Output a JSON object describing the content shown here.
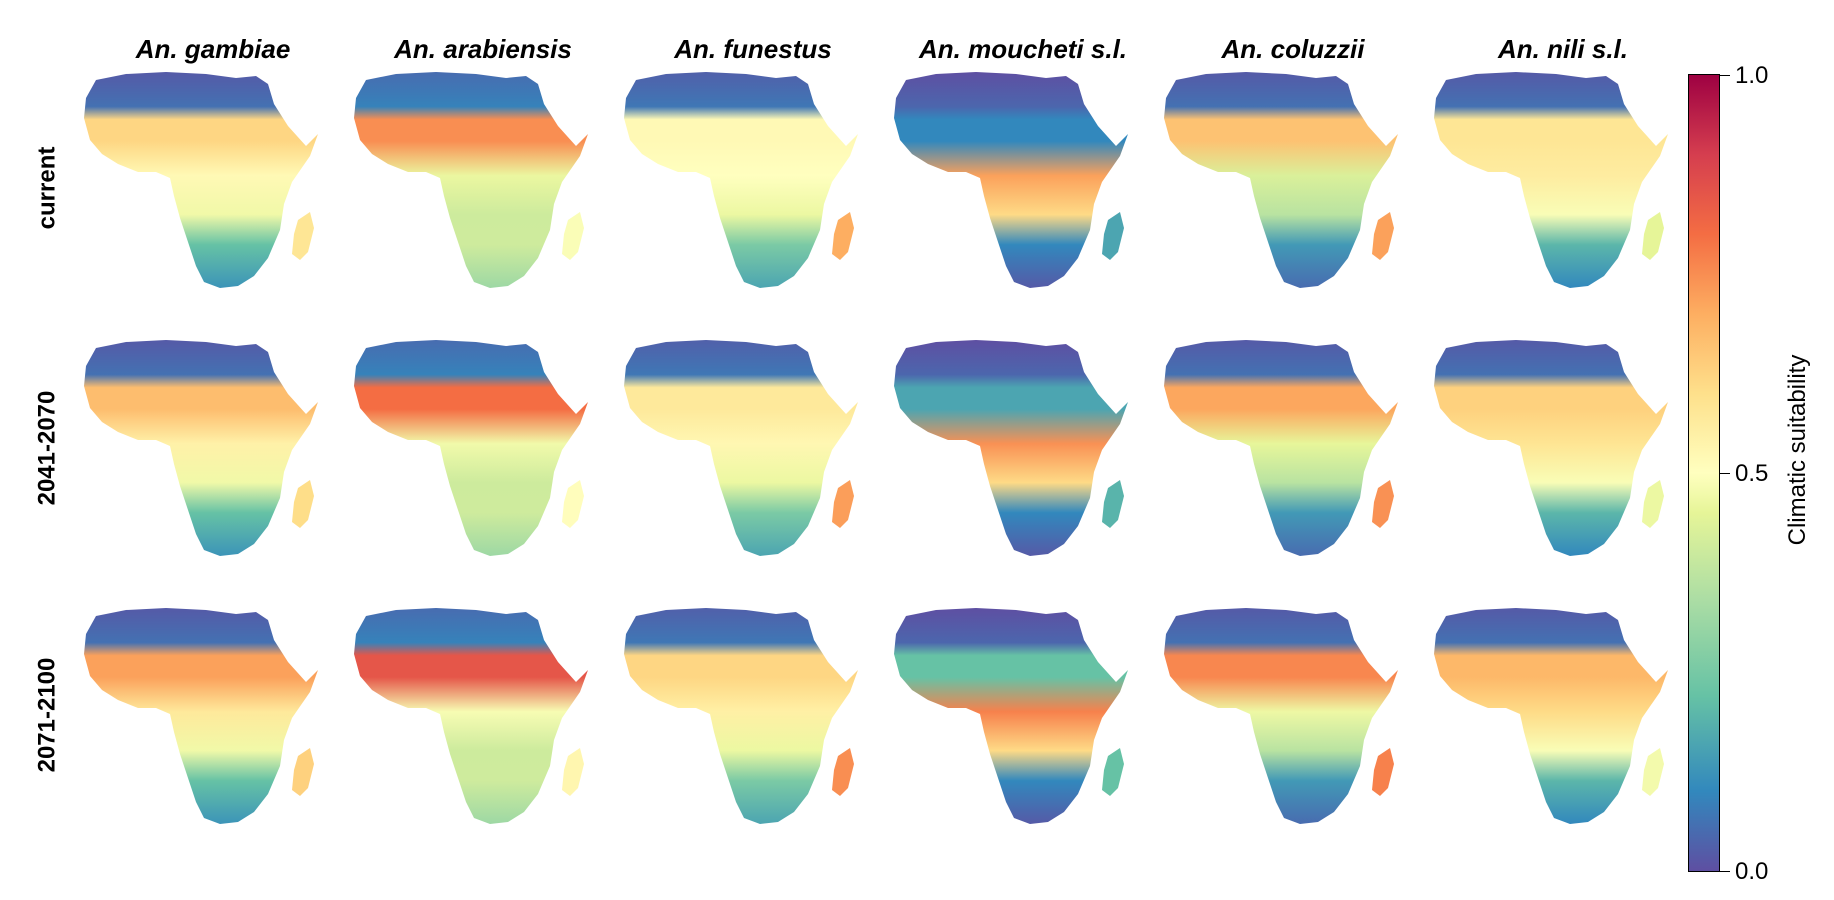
{
  "figure": {
    "columns": [
      "An. gambiae",
      "An. arabiensis",
      "An. funestus",
      "An. moucheti s.l.",
      "An. coluzzii",
      "An. nili s.l."
    ],
    "rows": [
      "current",
      "2041-2070",
      "2071-2100"
    ],
    "colorbar": {
      "label": "Climatic suitability",
      "ticks": [
        "0.0",
        "0.5",
        "1.0"
      ],
      "range": [
        0,
        1
      ],
      "colors": [
        "#5e4fa2",
        "#3288bd",
        "#66c2a5",
        "#abdda4",
        "#e6f598",
        "#ffffbf",
        "#fee08b",
        "#fdae61",
        "#f46d43",
        "#d53e4f",
        "#9e0142"
      ]
    },
    "suitability": {
      "An. gambiae": {
        "sahara": 0.02,
        "sahel": 0.62,
        "center": 0.52,
        "south": 0.12,
        "madagascar": 0.58
      },
      "An. arabiensis": {
        "sahara": 0.05,
        "sahel": 0.75,
        "center": 0.42,
        "south": 0.28,
        "madagascar": 0.48
      },
      "An. funestus": {
        "sahara": 0.03,
        "sahel": 0.52,
        "center": 0.5,
        "south": 0.15,
        "madagascar": 0.7
      },
      "An. moucheti s.l.": {
        "sahara": 0.0,
        "sahel": 0.1,
        "center": 0.72,
        "south": 0.02,
        "madagascar": 0.15
      },
      "An. coluzzii": {
        "sahara": 0.02,
        "sahel": 0.66,
        "center": 0.38,
        "south": 0.05,
        "madagascar": 0.72
      },
      "An. nili s.l.": {
        "sahara": 0.02,
        "sahel": 0.58,
        "center": 0.56,
        "south": 0.1,
        "madagascar": 0.4
      }
    }
  }
}
